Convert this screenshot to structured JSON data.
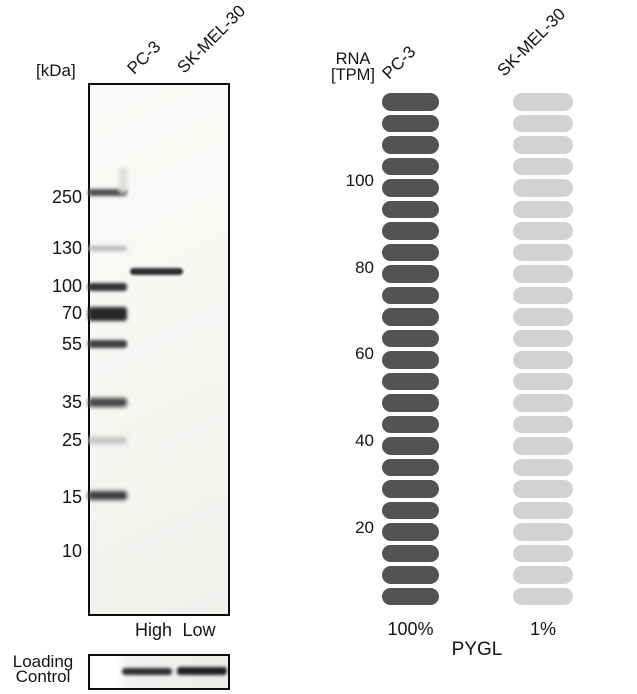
{
  "wb_panel": {
    "kda_axis_label": "[kDa]",
    "lane_labels": [
      "PC-3",
      "SK-MEL-30"
    ],
    "marker_labels": [
      "250",
      "130",
      "100",
      "70",
      "55",
      "35",
      "25",
      "15",
      "10"
    ],
    "lane_level_labels": [
      "High",
      "Low"
    ],
    "loading_control_label": [
      "Loading",
      "Control"
    ]
  },
  "chart_data": {
    "type": "pictorial-bar",
    "title": "RNA [TPM]",
    "title_lines": [
      "RNA",
      "[TPM]"
    ],
    "gene_label": "PYGL",
    "categories": [
      "PC-3",
      "SK-MEL-30"
    ],
    "series": [
      {
        "name": "PC-3",
        "percent_label": "100%",
        "percent_of_max": 100,
        "color": "#535353"
      },
      {
        "name": "SK-MEL-30",
        "percent_label": "1%",
        "percent_of_max": 1,
        "color": "#d2d2d2"
      }
    ],
    "units_per_column": 24,
    "tpm_per_unit": 5,
    "axis_ticks": [
      "100",
      "80",
      "60",
      "40",
      "20"
    ],
    "axis_range_tpm": [
      0,
      120
    ],
    "legend_position": "none"
  }
}
